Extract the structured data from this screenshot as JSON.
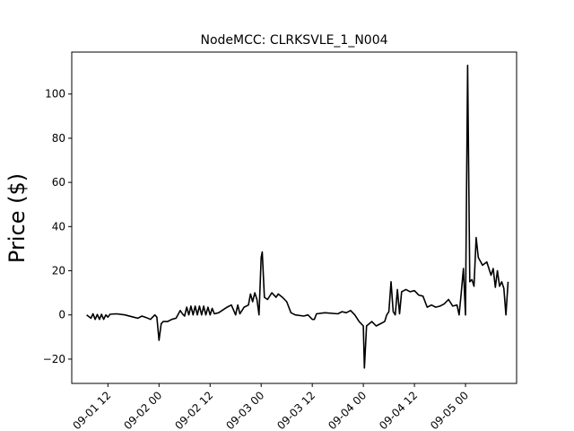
{
  "chart_data": {
    "type": "line",
    "title": "NodeMCC: CLRKSVLE_1_N004",
    "xlabel": "",
    "ylabel": "Price ($)",
    "x_unit": "datetime",
    "xlim": [
      "2023-09-01 03:30",
      "2023-09-05 12:00"
    ],
    "ylim": [
      -31,
      119
    ],
    "grid": false,
    "legend": "none",
    "line_color": "#000000",
    "x_ticks": [
      {
        "value": "2023-09-01 12:00",
        "label": "09-01 12"
      },
      {
        "value": "2023-09-02 00:00",
        "label": "09-02 00"
      },
      {
        "value": "2023-09-02 12:00",
        "label": "09-02 12"
      },
      {
        "value": "2023-09-03 00:00",
        "label": "09-03 00"
      },
      {
        "value": "2023-09-03 12:00",
        "label": "09-03 12"
      },
      {
        "value": "2023-09-04 00:00",
        "label": "09-04 00"
      },
      {
        "value": "2023-09-04 12:00",
        "label": "09-04 12"
      },
      {
        "value": "2023-09-05 00:00",
        "label": "09-05 00"
      }
    ],
    "y_ticks": [
      {
        "value": -20,
        "label": "−20"
      },
      {
        "value": 0,
        "label": "0"
      },
      {
        "value": 20,
        "label": "20"
      },
      {
        "value": 40,
        "label": "40"
      },
      {
        "value": 60,
        "label": "60"
      },
      {
        "value": 80,
        "label": "80"
      },
      {
        "value": 100,
        "label": "100"
      }
    ],
    "series": [
      {
        "points": [
          [
            "2023-09-01 07:00",
            0.0
          ],
          [
            "2023-09-01 08:00",
            -1.5
          ],
          [
            "2023-09-01 08:30",
            0.5
          ],
          [
            "2023-09-01 09:00",
            -2.0
          ],
          [
            "2023-09-01 09:30",
            0.2
          ],
          [
            "2023-09-01 10:00",
            -2.0
          ],
          [
            "2023-09-01 10:30",
            0.3
          ],
          [
            "2023-09-01 11:00",
            -2.0
          ],
          [
            "2023-09-01 11:30",
            0.0
          ],
          [
            "2023-09-01 12:00",
            -1.0
          ],
          [
            "2023-09-01 12:30",
            0.3
          ],
          [
            "2023-09-01 14:00",
            0.5
          ],
          [
            "2023-09-01 16:00",
            0.0
          ],
          [
            "2023-09-01 18:00",
            -1.0
          ],
          [
            "2023-09-01 19:00",
            -1.5
          ],
          [
            "2023-09-01 20:00",
            -0.5
          ],
          [
            "2023-09-01 21:00",
            -1.2
          ],
          [
            "2023-09-01 22:00",
            -2.0
          ],
          [
            "2023-09-01 23:00",
            0.0
          ],
          [
            "2023-09-01 23:30",
            -1.0
          ],
          [
            "2023-09-02 00:00",
            -11.5
          ],
          [
            "2023-09-02 00:30",
            -4.0
          ],
          [
            "2023-09-02 01:00",
            -3.0
          ],
          [
            "2023-09-02 02:00",
            -3.0
          ],
          [
            "2023-09-02 03:00",
            -2.0
          ],
          [
            "2023-09-02 04:00",
            -1.5
          ],
          [
            "2023-09-02 05:00",
            2.0
          ],
          [
            "2023-09-02 05:30",
            0.5
          ],
          [
            "2023-09-02 06:00",
            -0.5
          ],
          [
            "2023-09-02 06:30",
            3.5
          ],
          [
            "2023-09-02 07:00",
            0.0
          ],
          [
            "2023-09-02 07:30",
            4.0
          ],
          [
            "2023-09-02 08:00",
            0.0
          ],
          [
            "2023-09-02 08:30",
            4.0
          ],
          [
            "2023-09-02 09:00",
            0.0
          ],
          [
            "2023-09-02 09:30",
            4.0
          ],
          [
            "2023-09-02 10:00",
            0.0
          ],
          [
            "2023-09-02 10:30",
            4.0
          ],
          [
            "2023-09-02 11:00",
            0.0
          ],
          [
            "2023-09-02 11:30",
            3.5
          ],
          [
            "2023-09-02 12:00",
            0.0
          ],
          [
            "2023-09-02 12:30",
            3.0
          ],
          [
            "2023-09-02 13:00",
            0.5
          ],
          [
            "2023-09-02 14:00",
            1.0
          ],
          [
            "2023-09-02 16:00",
            3.5
          ],
          [
            "2023-09-02 17:00",
            4.5
          ],
          [
            "2023-09-02 18:00",
            0.0
          ],
          [
            "2023-09-02 18:30",
            4.5
          ],
          [
            "2023-09-02 19:00",
            0.5
          ],
          [
            "2023-09-02 20:00",
            3.5
          ],
          [
            "2023-09-02 21:00",
            4.5
          ],
          [
            "2023-09-02 21:30",
            9.5
          ],
          [
            "2023-09-02 22:00",
            6.0
          ],
          [
            "2023-09-02 22:30",
            10.0
          ],
          [
            "2023-09-02 23:00",
            7.0
          ],
          [
            "2023-09-02 23:30",
            0.0
          ],
          [
            "2023-09-03 00:00",
            26.0
          ],
          [
            "2023-09-03 00:15",
            28.5
          ],
          [
            "2023-09-03 00:45",
            8.0
          ],
          [
            "2023-09-03 01:30",
            7.0
          ],
          [
            "2023-09-03 02:30",
            10.0
          ],
          [
            "2023-09-03 03:30",
            8.0
          ],
          [
            "2023-09-03 04:00",
            9.5
          ],
          [
            "2023-09-03 05:00",
            8.0
          ],
          [
            "2023-09-03 06:00",
            6.0
          ],
          [
            "2023-09-03 07:00",
            1.0
          ],
          [
            "2023-09-03 08:00",
            0.0
          ],
          [
            "2023-09-03 10:00",
            -0.5
          ],
          [
            "2023-09-03 11:00",
            0.0
          ],
          [
            "2023-09-03 12:00",
            -2.0
          ],
          [
            "2023-09-03 12:30",
            -2.0
          ],
          [
            "2023-09-03 13:00",
            0.5
          ],
          [
            "2023-09-03 15:00",
            1.0
          ],
          [
            "2023-09-03 18:00",
            0.5
          ],
          [
            "2023-09-03 19:00",
            1.5
          ],
          [
            "2023-09-03 20:00",
            1.0
          ],
          [
            "2023-09-03 21:00",
            2.0
          ],
          [
            "2023-09-03 22:00",
            0.0
          ],
          [
            "2023-09-03 23:00",
            -3.0
          ],
          [
            "2023-09-04 00:00",
            -5.0
          ],
          [
            "2023-09-04 00:15",
            -24.0
          ],
          [
            "2023-09-04 00:45",
            -5.0
          ],
          [
            "2023-09-04 02:00",
            -3.0
          ],
          [
            "2023-09-04 03:00",
            -5.0
          ],
          [
            "2023-09-04 04:00",
            -4.0
          ],
          [
            "2023-09-04 05:00",
            -3.0
          ],
          [
            "2023-09-04 05:30",
            0.0
          ],
          [
            "2023-09-04 06:00",
            1.5
          ],
          [
            "2023-09-04 06:30",
            15.0
          ],
          [
            "2023-09-04 07:00",
            1.5
          ],
          [
            "2023-09-04 07:30",
            0.0
          ],
          [
            "2023-09-04 08:00",
            11.5
          ],
          [
            "2023-09-04 08:30",
            0.5
          ],
          [
            "2023-09-04 09:00",
            10.5
          ],
          [
            "2023-09-04 10:00",
            11.5
          ],
          [
            "2023-09-04 11:00",
            10.5
          ],
          [
            "2023-09-04 12:00",
            11.0
          ],
          [
            "2023-09-04 13:00",
            9.0
          ],
          [
            "2023-09-04 14:00",
            8.5
          ],
          [
            "2023-09-04 15:00",
            3.5
          ],
          [
            "2023-09-04 16:00",
            4.5
          ],
          [
            "2023-09-04 17:00",
            3.5
          ],
          [
            "2023-09-04 18:00",
            4.0
          ],
          [
            "2023-09-04 19:00",
            5.0
          ],
          [
            "2023-09-04 20:00",
            7.0
          ],
          [
            "2023-09-04 21:00",
            4.0
          ],
          [
            "2023-09-04 22:00",
            4.5
          ],
          [
            "2023-09-04 22:30",
            0.0
          ],
          [
            "2023-09-04 23:00",
            10.0
          ],
          [
            "2023-09-04 23:30",
            21.0
          ],
          [
            "2023-09-05 00:00",
            0.0
          ],
          [
            "2023-09-05 00:30",
            113.0
          ],
          [
            "2023-09-05 01:00",
            15.0
          ],
          [
            "2023-09-05 01:30",
            16.0
          ],
          [
            "2023-09-05 02:00",
            13.0
          ],
          [
            "2023-09-05 02:30",
            35.0
          ],
          [
            "2023-09-05 03:00",
            26.0
          ],
          [
            "2023-09-05 04:00",
            22.5
          ],
          [
            "2023-09-05 05:00",
            24.0
          ],
          [
            "2023-09-05 06:00",
            18.0
          ],
          [
            "2023-09-05 06:30",
            21.0
          ],
          [
            "2023-09-05 07:00",
            12.5
          ],
          [
            "2023-09-05 07:30",
            20.0
          ],
          [
            "2023-09-05 08:00",
            13.0
          ],
          [
            "2023-09-05 08:30",
            15.0
          ],
          [
            "2023-09-05 09:00",
            12.0
          ],
          [
            "2023-09-05 09:30",
            0.0
          ],
          [
            "2023-09-05 10:00",
            15.0
          ]
        ]
      }
    ]
  }
}
